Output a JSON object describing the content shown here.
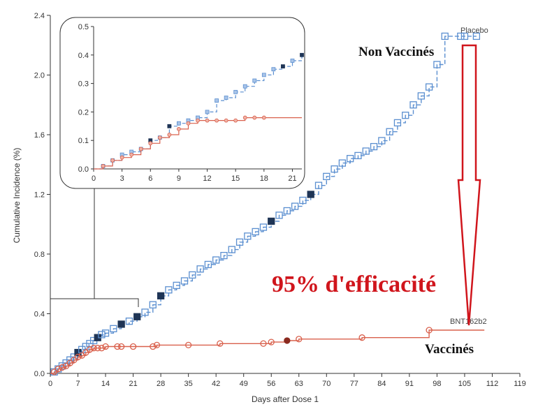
{
  "chart_data": {
    "type": "line",
    "xlabel": "Days after Dose 1",
    "ylabel": "Cumulative Incidence (%)",
    "xlim": [
      0,
      119
    ],
    "ylim": [
      0,
      2.4
    ],
    "xticks": [
      "0",
      "7",
      "14",
      "21",
      "28",
      "35",
      "42",
      "49",
      "56",
      "63",
      "70",
      "77",
      "84",
      "91",
      "98",
      "105",
      "112",
      "119"
    ],
    "yticks": [
      "0.0",
      "0.4",
      "0.8",
      "1.2",
      "1.6",
      "2.0",
      "2.4"
    ],
    "series": [
      {
        "name": "Placebo",
        "color": "#5b8fd0",
        "style": "dashed",
        "x": [
          0,
          1,
          2,
          3,
          4,
          5,
          6,
          7,
          8,
          9,
          10,
          11,
          12,
          13,
          14,
          16,
          18,
          20,
          22,
          24,
          26,
          28,
          30,
          32,
          34,
          36,
          38,
          40,
          42,
          44,
          46,
          48,
          50,
          52,
          54,
          56,
          58,
          60,
          62,
          64,
          66,
          68,
          70,
          72,
          74,
          76,
          78,
          80,
          82,
          84,
          86,
          88,
          90,
          92,
          94,
          96,
          98,
          100,
          104,
          108
        ],
        "values": [
          0,
          0.01,
          0.03,
          0.05,
          0.07,
          0.09,
          0.11,
          0.14,
          0.16,
          0.18,
          0.2,
          0.22,
          0.24,
          0.26,
          0.27,
          0.3,
          0.33,
          0.35,
          0.38,
          0.41,
          0.46,
          0.52,
          0.56,
          0.59,
          0.62,
          0.66,
          0.7,
          0.73,
          0.76,
          0.79,
          0.83,
          0.88,
          0.92,
          0.95,
          0.98,
          1.02,
          1.06,
          1.09,
          1.12,
          1.16,
          1.2,
          1.26,
          1.32,
          1.37,
          1.41,
          1.44,
          1.46,
          1.49,
          1.52,
          1.56,
          1.62,
          1.68,
          1.73,
          1.8,
          1.86,
          1.92,
          2.07,
          2.26,
          2.26,
          2.26
        ]
      },
      {
        "name": "BNT162b2",
        "color": "#d9604c",
        "style": "solid",
        "x": [
          0,
          1,
          2,
          3,
          4,
          5,
          6,
          7,
          8,
          9,
          10,
          11,
          12,
          13,
          14,
          17,
          18,
          21,
          26,
          27,
          35,
          43,
          54,
          56,
          60,
          63,
          79,
          96,
          110
        ],
        "values": [
          0,
          0.01,
          0.03,
          0.04,
          0.05,
          0.07,
          0.09,
          0.11,
          0.12,
          0.14,
          0.16,
          0.17,
          0.17,
          0.17,
          0.18,
          0.18,
          0.18,
          0.18,
          0.18,
          0.19,
          0.19,
          0.2,
          0.2,
          0.21,
          0.22,
          0.23,
          0.24,
          0.29,
          0.29
        ]
      }
    ],
    "inset": {
      "xlim": [
        0,
        22
      ],
      "ylim": [
        0,
        0.5
      ],
      "xticks": [
        "0",
        "3",
        "6",
        "9",
        "12",
        "15",
        "18",
        "21"
      ],
      "yticks": [
        "0.0",
        "0.1",
        "0.2",
        "0.3",
        "0.4",
        "0.5"
      ],
      "series": [
        {
          "name": "Placebo",
          "x": [
            0,
            1,
            2,
            3,
            4,
            5,
            6,
            7,
            8,
            9,
            10,
            11,
            12,
            13,
            14,
            15,
            16,
            17,
            18,
            19,
            20,
            21,
            22
          ],
          "values": [
            0,
            0.01,
            0.03,
            0.05,
            0.06,
            0.07,
            0.1,
            0.11,
            0.15,
            0.16,
            0.17,
            0.18,
            0.2,
            0.24,
            0.25,
            0.27,
            0.29,
            0.31,
            0.33,
            0.35,
            0.36,
            0.38,
            0.4
          ]
        },
        {
          "name": "BNT162b2",
          "x": [
            0,
            1,
            2,
            3,
            4,
            5,
            6,
            7,
            8,
            9,
            10,
            11,
            12,
            13,
            14,
            15,
            16,
            17,
            18,
            19,
            20,
            21,
            22
          ],
          "values": [
            0,
            0.01,
            0.03,
            0.04,
            0.05,
            0.07,
            0.09,
            0.11,
            0.12,
            0.14,
            0.16,
            0.17,
            0.17,
            0.17,
            0.17,
            0.17,
            0.18,
            0.18,
            0.18,
            0.18,
            0.18,
            0.18,
            0.18
          ]
        }
      ]
    }
  },
  "annotations": {
    "non_vaccines": "Non Vaccinés",
    "efficacite": "95% d'efficacité",
    "vaccines": "Vaccinés"
  },
  "colors": {
    "placebo": "#5b8fd0",
    "placebo_filled": "#1f3556",
    "vaccine": "#d9604c",
    "vaccine_filled": "#8b2a1f",
    "arrow": "#d0151c"
  }
}
